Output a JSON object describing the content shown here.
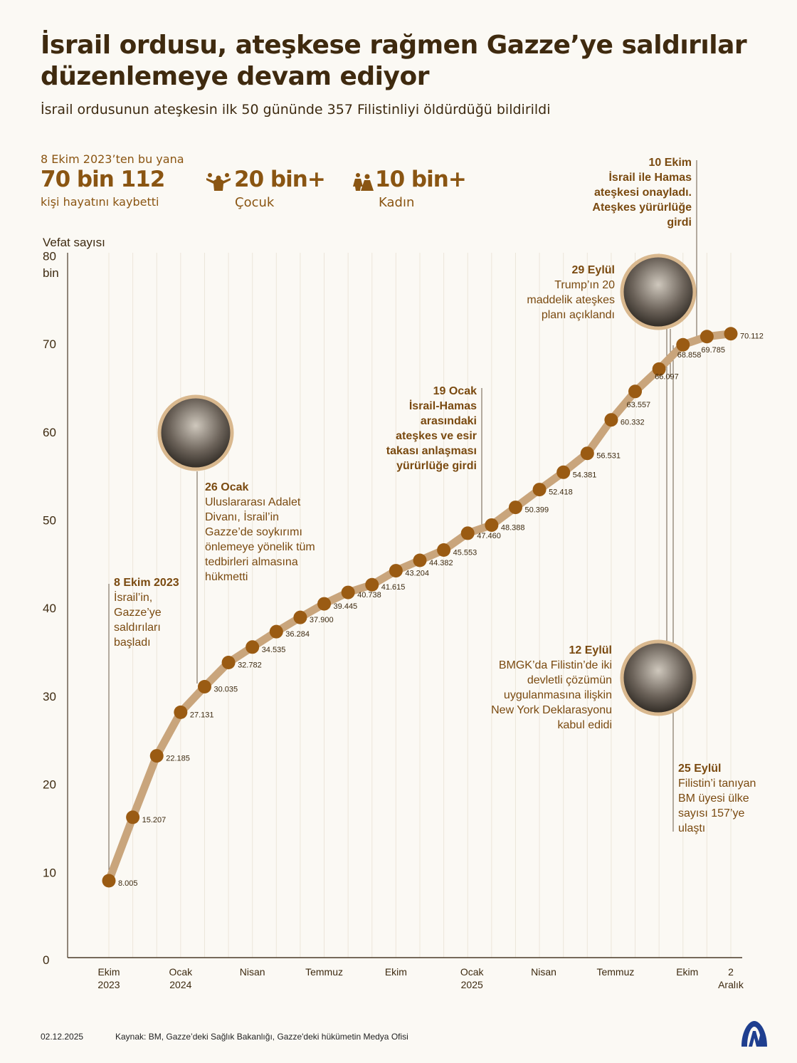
{
  "header": {
    "title": "İsrail ordusu, ateşkese rağmen Gazze’ye saldırılar düzenlemeye devam ediyor",
    "subtitle": "İsrail ordusunun ateşkesin ilk 50 gününde 357 Filistinliyi öldürdüğü bildirildi"
  },
  "stats": {
    "since": "8 Ekim 2023’ten bu yana",
    "total": "70 bin 112",
    "total_label": "kişi hayatını kaybetti",
    "children": "20 bin+",
    "children_label": "Çocuk",
    "children_icon": "children-icon",
    "women": "10 bin+",
    "women_label": "Kadın",
    "women_icon": "women-icon"
  },
  "chart_data": {
    "type": "line",
    "ylabel": "Vefat sayısı",
    "ylim": [
      0,
      80
    ],
    "yticks": [
      "0",
      "10",
      "20",
      "30",
      "40",
      "50",
      "60",
      "70",
      "80"
    ],
    "ytick_top_unit": "bin",
    "grid": "vertical",
    "x": [
      "2023-10",
      "2023-11",
      "2023-12",
      "2024-01",
      "2024-02",
      "2024-03",
      "2024-04",
      "2024-05",
      "2024-06",
      "2024-07",
      "2024-08",
      "2024-09",
      "2024-10",
      "2024-11",
      "2024-12",
      "2025-01",
      "2025-02",
      "2025-03",
      "2025-04",
      "2025-05",
      "2025-06",
      "2025-07",
      "2025-08",
      "2025-09",
      "2025-10",
      "2025-11",
      "2025-12-02"
    ],
    "values": [
      8.005,
      15.207,
      22.185,
      27.131,
      30.035,
      32.782,
      34.535,
      36.284,
      37.9,
      39.445,
      40.738,
      41.615,
      43.204,
      44.382,
      45.553,
      47.46,
      48.388,
      50.399,
      52.418,
      54.381,
      56.531,
      60.332,
      63.557,
      66.097,
      68.858,
      69.785,
      70.112
    ],
    "value_labels": [
      "8.005",
      "15.207",
      "22.185",
      "27.131",
      "30.035",
      "32.782",
      "34.535",
      "36.284",
      "37.900",
      "39.445",
      "40.738",
      "41.615",
      "43.204",
      "44.382",
      "45.553",
      "47.460",
      "48.388",
      "50.399",
      "52.418",
      "54.381",
      "56.531",
      "60.332",
      "63.557",
      "66.097",
      "68.858",
      "69.785",
      "70.112"
    ],
    "xticks": [
      {
        "index": 0,
        "label": "Ekim",
        "sub": "2023"
      },
      {
        "index": 3,
        "label": "Ocak",
        "sub": "2024"
      },
      {
        "index": 6,
        "label": "Nisan",
        "sub": ""
      },
      {
        "index": 9,
        "label": "Temmuz",
        "sub": ""
      },
      {
        "index": 12,
        "label": "Ekim",
        "sub": ""
      },
      {
        "index": 15,
        "label": "Ocak",
        "sub": "2025"
      },
      {
        "index": 18,
        "label": "Nisan",
        "sub": ""
      },
      {
        "index": 21,
        "label": "Temmuz",
        "sub": ""
      },
      {
        "index": 24,
        "label": "Ekim",
        "sub": ""
      },
      {
        "index": 26,
        "label": "2",
        "sub": "Aralık"
      }
    ],
    "colors": {
      "line": "#c9a57c",
      "dot": "#9a5b13",
      "axis": "#4a3a28",
      "grid": "#ece6da",
      "label": "#3d2a10"
    }
  },
  "annotations": {
    "a1": {
      "date": "8 Ekim 2023",
      "text": [
        "İsrail’in,",
        "Gazze’ye",
        "saldırıları",
        "başladı"
      ]
    },
    "a2": {
      "date": "26 Ocak",
      "text": [
        "Uluslararası Adalet",
        "Divanı, İsrail’in",
        "Gazze’de soykırımı",
        "önlemeye yönelik tüm",
        "tedbirleri almasına",
        "hükmetti"
      ]
    },
    "a3": {
      "date": "19 Ocak",
      "text": [
        "İsrail-Hamas",
        "arasındaki",
        "ateşkes ve esir",
        "takası anlaşması",
        "yürürlüğe girdi"
      ]
    },
    "a4": {
      "date": "12 Eylül",
      "text": [
        "BMGK’da Filistin’de iki",
        "devletli çözümün",
        "uygulanmasına ilişkin",
        "New York Deklarasyonu",
        "kabul edidi"
      ]
    },
    "a5": {
      "date": "25 Eylül",
      "text": [
        "Filistin’i tanıyan",
        "BM üyesi ülke",
        "sayısı 157’ye",
        "ulaştı"
      ]
    },
    "a6": {
      "date": "29 Eylül",
      "text": [
        "Trump’ın 20",
        "maddelik ateşkes",
        "planı açıklandı"
      ]
    },
    "a7": {
      "date": "10 Ekim",
      "text": [
        "İsrail ile Hamas",
        "ateşkesi onayladı.",
        "Ateşkes yürürlüğe",
        "girdi"
      ]
    }
  },
  "footer": {
    "date": "02.12.2025",
    "source": "Kaynak: BM, Gazze’deki Sağlık Bakanlığı, Gazze'deki hükümetin Medya Ofisi",
    "logo_text": "AA",
    "logo_color": "#1f3f8f"
  }
}
